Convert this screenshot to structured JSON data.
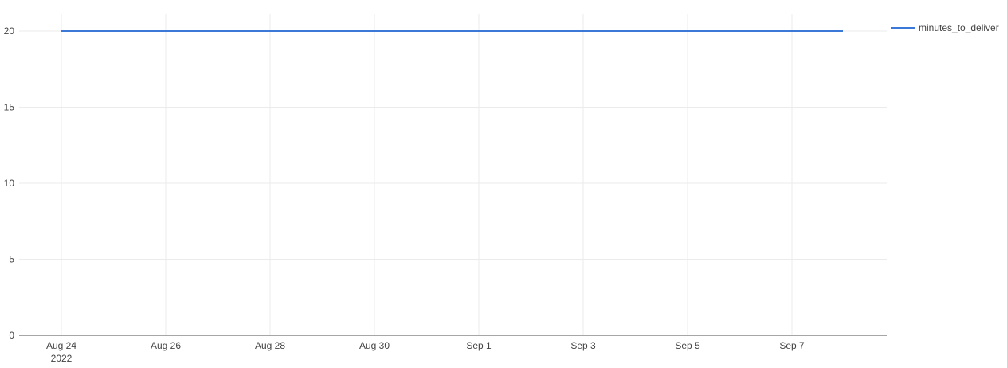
{
  "chart_data": {
    "type": "line",
    "x": [
      "2022-08-24",
      "2022-08-25",
      "2022-08-26",
      "2022-08-27",
      "2022-08-28",
      "2022-08-29",
      "2022-08-30",
      "2022-08-31",
      "2022-09-01",
      "2022-09-02",
      "2022-09-03",
      "2022-09-04",
      "2022-09-05",
      "2022-09-06",
      "2022-09-07",
      "2022-09-08"
    ],
    "series": [
      {
        "name": "minutes_to_deliver",
        "color": "#3c78d8",
        "values": [
          20,
          20,
          20,
          20,
          20,
          20,
          20,
          20,
          20,
          20,
          20,
          20,
          20,
          20,
          20,
          20
        ]
      }
    ],
    "xlim": [
      "2022-08-23",
      "2022-09-09"
    ],
    "ylim": [
      0,
      21
    ],
    "x_ticks": [
      {
        "date": "2022-08-24",
        "label": "Aug 24",
        "sublabel": "2022"
      },
      {
        "date": "2022-08-26",
        "label": "Aug 26"
      },
      {
        "date": "2022-08-28",
        "label": "Aug 28"
      },
      {
        "date": "2022-08-30",
        "label": "Aug 30"
      },
      {
        "date": "2022-09-01",
        "label": "Sep 1"
      },
      {
        "date": "2022-09-03",
        "label": "Sep 3"
      },
      {
        "date": "2022-09-05",
        "label": "Sep 5"
      },
      {
        "date": "2022-09-07",
        "label": "Sep 7"
      }
    ],
    "y_ticks": [
      {
        "value": 0,
        "label": "0"
      },
      {
        "value": 5,
        "label": "5"
      },
      {
        "value": 10,
        "label": "10"
      },
      {
        "value": 15,
        "label": "15"
      },
      {
        "value": 20,
        "label": "20"
      }
    ],
    "title": "",
    "xlabel": "",
    "ylabel": "",
    "grid": true,
    "legend": {
      "position": "top-right"
    },
    "colors": {
      "grid": "#ebebeb",
      "axis": "#888888",
      "text": "#444444"
    }
  }
}
